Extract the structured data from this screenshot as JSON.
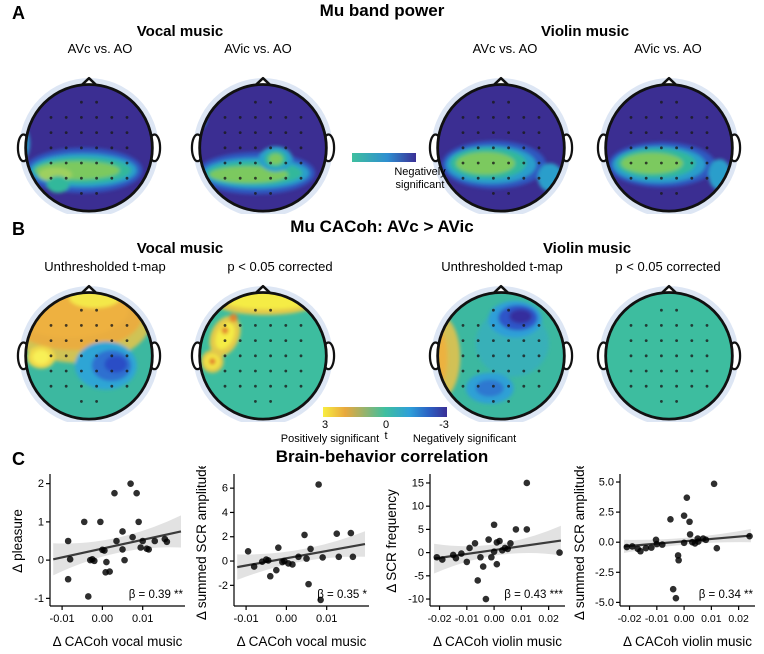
{
  "panels": {
    "a": {
      "label": "A",
      "title": "Mu band power",
      "groups": [
        {
          "title": "Vocal music",
          "conditions": [
            "AVc vs. AO",
            "AVic vs. AO"
          ]
        },
        {
          "title": "Violin music",
          "conditions": [
            "AVc vs. AO",
            "AVic vs. AO"
          ]
        }
      ],
      "colorbar": {
        "label_line1": "Negatively",
        "label_line2": "significant"
      }
    },
    "b": {
      "label": "B",
      "title": "Mu CACoh: AVc > AVic",
      "groups": [
        {
          "title": "Vocal music",
          "conditions": [
            "Unthresholded t-map",
            "p < 0.05 corrected"
          ]
        },
        {
          "title": "Violin music",
          "conditions": [
            "Unthresholded t-map",
            "p < 0.05 corrected"
          ]
        }
      ],
      "colorbar": {
        "ticks": [
          "3",
          "0",
          "-3"
        ],
        "left_label": "Positively significant",
        "mid_label": "t",
        "right_label": "Negatively significant"
      }
    },
    "c": {
      "label": "C",
      "title": "Brain-behavior correlation"
    }
  },
  "colors": {
    "colorbar_a_gradient": [
      "#3fbf9f",
      "#2e8fd0 55%",
      "#3a2f96"
    ],
    "colorbar_b_gradient": [
      "#f8ed41",
      "#e8a83e 18%",
      "#3fbf9f 50%",
      "#2e9fd9 70%",
      "#2b62c4 85%",
      "#3a2f96"
    ],
    "topo_dark_blue": "#3b2e92",
    "topo_teal": "#3cbd9f",
    "scatter_point": "#000000",
    "scatter_line": "#3b3b3b",
    "scatter_band": "#cfcfcf"
  },
  "topomaps": [
    {
      "panel": "A",
      "group": "Vocal music",
      "condition": "AVc vs. AO",
      "base": "#3b2e92",
      "blobs": [
        [
          50,
          67,
          42,
          16,
          0,
          "#2d59c0"
        ],
        [
          50,
          67,
          38,
          12,
          0,
          "#2a9ecb"
        ],
        [
          49,
          67,
          35,
          9.5,
          0,
          "#33b89b"
        ],
        [
          46,
          67,
          30,
          6.5,
          0,
          "#7cc95e"
        ],
        [
          30,
          70,
          12,
          5,
          0,
          "#9ed05e"
        ],
        [
          32,
          77,
          8,
          6,
          0,
          "#33b89b"
        ],
        [
          6,
          48,
          6,
          12,
          0,
          "#2a9ecb"
        ]
      ]
    },
    {
      "panel": "A",
      "group": "Vocal music",
      "condition": "AVic vs. AO",
      "base": "#3b2e92",
      "blobs": [
        [
          49,
          69,
          42,
          15,
          0,
          "#2d59c0"
        ],
        [
          49,
          69,
          38,
          11,
          0,
          "#2a9ecb"
        ],
        [
          48,
          69,
          34,
          8.5,
          0,
          "#33b89b"
        ],
        [
          44,
          70,
          28,
          6,
          0,
          "#7cc95e"
        ],
        [
          63,
          59,
          12,
          9,
          0,
          "#2a9ecb"
        ],
        [
          63,
          59,
          8,
          6,
          0,
          "#33b89b"
        ],
        [
          63,
          59,
          5,
          4,
          0,
          "#7cc95e"
        ],
        [
          8,
          30,
          6,
          8,
          0,
          "#2a9ecb"
        ]
      ]
    },
    {
      "panel": "A",
      "group": "Violin music",
      "condition": "AVc vs. AO",
      "base": "#3b2e92",
      "blobs": [
        [
          49,
          63,
          37,
          17,
          0,
          "#2d59c0"
        ],
        [
          47,
          63,
          32,
          13.5,
          0,
          "#2a9ecb"
        ],
        [
          45,
          62,
          27,
          11,
          0,
          "#33b89b"
        ],
        [
          43,
          62,
          21,
          8,
          0,
          "#7cc95e"
        ],
        [
          89,
          72,
          9,
          10,
          0,
          "#2a9ecb"
        ]
      ]
    },
    {
      "panel": "A",
      "group": "Violin music",
      "condition": "AVic vs. AO",
      "base": "#3b2e92",
      "blobs": [
        [
          49,
          63,
          38,
          16,
          0,
          "#2d59c0"
        ],
        [
          47,
          63,
          33,
          13,
          0,
          "#2a9ecb"
        ],
        [
          45,
          62,
          28,
          10.5,
          0,
          "#33b89b"
        ],
        [
          42,
          62,
          22,
          7.5,
          0,
          "#7cc95e"
        ],
        [
          90,
          70,
          8,
          11,
          0,
          "#2a9ecb"
        ]
      ]
    },
    {
      "panel": "B",
      "group": "Vocal music",
      "condition": "Unthresholded t-map",
      "base": "#3cb8a0",
      "blobs": [
        [
          46,
          26,
          52,
          30,
          0,
          "#cfc355"
        ],
        [
          44,
          22,
          48,
          25,
          0,
          "#e9ad40"
        ],
        [
          40,
          18,
          42,
          20,
          0,
          "#eeb13f"
        ],
        [
          58,
          10,
          18,
          7,
          0,
          "#f4e84a"
        ],
        [
          20,
          52,
          10,
          8,
          0,
          "#f0d84a"
        ],
        [
          20,
          52,
          6,
          5,
          0,
          "#f8f056"
        ],
        [
          66,
          58,
          22,
          17,
          0,
          "#2fa5d5"
        ],
        [
          70,
          58,
          14,
          11,
          0,
          "#2e6fd0"
        ],
        [
          73,
          57,
          8,
          6,
          0,
          "#2b4ec6"
        ]
      ]
    },
    {
      "panel": "B",
      "group": "Vocal music",
      "condition": "p < 0.05 corrected",
      "base": "#3dbd9f",
      "blobs": [
        [
          56,
          12,
          38,
          10,
          0,
          "#e3c94a"
        ],
        [
          58,
          11,
          33,
          7,
          0,
          "#f5ec45"
        ],
        [
          27,
          37,
          10,
          15,
          25,
          "#e3c94a"
        ],
        [
          27,
          37,
          6,
          10,
          25,
          "#f5ec45"
        ],
        [
          18,
          55,
          8,
          8,
          0,
          "#e3c94a"
        ],
        [
          18,
          55,
          5,
          5,
          0,
          "#f5ec45"
        ],
        [
          27,
          33,
          2.5,
          2.5,
          0,
          "#e2832f"
        ],
        [
          18,
          55,
          2.5,
          2.5,
          0,
          "#e2832f"
        ],
        [
          33,
          24,
          3,
          3,
          0,
          "#e2832f"
        ]
      ]
    },
    {
      "panel": "B",
      "group": "Violin music",
      "condition": "Unthresholded t-map",
      "base": "#3cb8a0",
      "blobs": [
        [
          62,
          42,
          26,
          24,
          0,
          "#38b0b8"
        ],
        [
          10,
          52,
          15,
          30,
          0,
          "#d2c155"
        ],
        [
          6,
          52,
          10,
          24,
          0,
          "#ecb23f"
        ],
        [
          3,
          50,
          5,
          12,
          0,
          "#f4e84a"
        ],
        [
          64,
          25,
          19,
          13,
          0,
          "#2f9fd8"
        ],
        [
          66,
          24,
          14,
          9,
          0,
          "#2e55c8"
        ],
        [
          68,
          23,
          8,
          5,
          0,
          "#342f9e"
        ],
        [
          46,
          74,
          17,
          11,
          0,
          "#2fa0d5"
        ],
        [
          46,
          74,
          10,
          6,
          0,
          "#2e78d0"
        ]
      ]
    },
    {
      "panel": "B",
      "group": "Violin music",
      "condition": "p < 0.05 corrected",
      "base": "#3dbd9f",
      "blobs": []
    }
  ],
  "chart_data": [
    {
      "type": "scatter",
      "name": "pleasure-vs-cacoh-vocal",
      "xlabel": "Δ CACoh vocal music",
      "ylabel": "Δ pleasure",
      "annotation": "β = 0.39 **",
      "xlim": [
        -0.013,
        0.0205
      ],
      "ylim": [
        -1.2,
        2.2
      ],
      "xticks": [
        -0.01,
        0,
        0.01
      ],
      "xtick_labels": [
        "-0.01",
        "0.00",
        "0.01"
      ],
      "yticks": [
        -1,
        0,
        1,
        2
      ],
      "ytick_labels": [
        "-1",
        "0",
        "1",
        "2"
      ],
      "points": [
        [
          -0.0085,
          0.5
        ],
        [
          -0.0085,
          -0.5
        ],
        [
          -0.008,
          0.02
        ],
        [
          -0.0045,
          1.0
        ],
        [
          -0.0035,
          -0.95
        ],
        [
          -0.003,
          0.0
        ],
        [
          -0.0025,
          0.02
        ],
        [
          -0.002,
          -0.02
        ],
        [
          -0.0005,
          1.0
        ],
        [
          0.0,
          0.27
        ],
        [
          0.0005,
          0.25
        ],
        [
          0.001,
          -0.05
        ],
        [
          0.0008,
          -0.32
        ],
        [
          0.0018,
          -0.3
        ],
        [
          0.003,
          1.75
        ],
        [
          0.0035,
          0.5
        ],
        [
          0.005,
          0.75
        ],
        [
          0.005,
          0.28
        ],
        [
          0.0055,
          0.0
        ],
        [
          0.007,
          2.0
        ],
        [
          0.0085,
          1.75
        ],
        [
          0.0075,
          0.6
        ],
        [
          0.009,
          1.0
        ],
        [
          0.0095,
          0.33
        ],
        [
          0.01,
          0.5
        ],
        [
          0.011,
          0.3
        ],
        [
          0.0115,
          0.28
        ],
        [
          0.013,
          0.5
        ],
        [
          0.0155,
          0.55
        ],
        [
          0.016,
          0.48
        ]
      ],
      "regression": {
        "x": [
          -0.0122,
          0.0195
        ],
        "y": [
          0.02,
          0.75
        ]
      },
      "ci": {
        "end": 0.42,
        "mid": 0.2
      }
    },
    {
      "type": "scatter",
      "name": "summed-scr-amplitude-vs-cacoh-vocal",
      "xlabel": "Δ CACoh vocal music",
      "ylabel": "Δ summed SCR amplitude",
      "annotation": "β = 0.35 *",
      "xlim": [
        -0.013,
        0.0205
      ],
      "ylim": [
        -3.7,
        7.0
      ],
      "xticks": [
        -0.01,
        0,
        0.01
      ],
      "xtick_labels": [
        "-0.01",
        "0.00",
        "0.01"
      ],
      "yticks": [
        -2,
        0,
        2,
        4,
        6
      ],
      "ytick_labels": [
        "-2",
        "0",
        "2",
        "4",
        "6"
      ],
      "points": [
        [
          -0.0095,
          0.8
        ],
        [
          -0.008,
          -0.45
        ],
        [
          -0.006,
          -0.05
        ],
        [
          -0.005,
          0.12
        ],
        [
          -0.0045,
          0.05
        ],
        [
          -0.004,
          -1.25
        ],
        [
          -0.0025,
          -0.75
        ],
        [
          -0.002,
          1.1
        ],
        [
          -0.001,
          -0.08
        ],
        [
          -0.0005,
          0.0
        ],
        [
          0.0005,
          -0.2
        ],
        [
          0.0015,
          -0.28
        ],
        [
          0.003,
          0.35
        ],
        [
          0.0045,
          2.15
        ],
        [
          0.005,
          0.2
        ],
        [
          0.0055,
          -1.9
        ],
        [
          0.006,
          1.0
        ],
        [
          0.008,
          6.3
        ],
        [
          0.0085,
          -3.2
        ],
        [
          0.009,
          0.3
        ],
        [
          0.0125,
          2.25
        ],
        [
          0.013,
          0.35
        ],
        [
          0.016,
          2.3
        ],
        [
          0.0165,
          0.35
        ]
      ],
      "regression": {
        "x": [
          -0.0122,
          0.0195
        ],
        "y": [
          -0.5,
          1.4
        ]
      },
      "ci": {
        "end": 1.05,
        "mid": 0.5
      }
    },
    {
      "type": "scatter",
      "name": "scr-frequency-vs-cacoh-violin",
      "xlabel": "Δ CACoh violin music",
      "ylabel": "Δ SCR frequency",
      "annotation": "β = 0.43 ***",
      "xlim": [
        -0.0235,
        0.026
      ],
      "ylim": [
        -11.5,
        16.5
      ],
      "xticks": [
        -0.02,
        -0.01,
        0,
        0.01,
        0.02
      ],
      "xtick_labels": [
        "-0.02",
        "-0.01",
        "0.00",
        "0.01",
        "0.02"
      ],
      "yticks": [
        -10,
        -5,
        0,
        5,
        10,
        15
      ],
      "ytick_labels": [
        "-10",
        "-5",
        "0",
        "5",
        "10",
        "15"
      ],
      "points": [
        [
          -0.021,
          -1.0
        ],
        [
          -0.019,
          -1.5
        ],
        [
          -0.015,
          -0.5
        ],
        [
          -0.014,
          -1.2
        ],
        [
          -0.012,
          -0.2
        ],
        [
          -0.01,
          -2.0
        ],
        [
          -0.009,
          1.0
        ],
        [
          -0.007,
          2.0
        ],
        [
          -0.006,
          -6.0
        ],
        [
          -0.005,
          -1.0
        ],
        [
          -0.004,
          -3.0
        ],
        [
          -0.003,
          -10.0
        ],
        [
          -0.002,
          2.8
        ],
        [
          -0.001,
          -1.0
        ],
        [
          0.0,
          6.0
        ],
        [
          0.0,
          0.2
        ],
        [
          0.001,
          2.2
        ],
        [
          0.001,
          -2.5
        ],
        [
          0.002,
          2.5
        ],
        [
          0.003,
          0.5
        ],
        [
          0.004,
          1.0
        ],
        [
          0.005,
          0.8
        ],
        [
          0.006,
          2.0
        ],
        [
          0.008,
          5.0
        ],
        [
          0.012,
          15.0
        ],
        [
          0.012,
          5.0
        ],
        [
          0.024,
          0.0
        ]
      ],
      "regression": {
        "x": [
          -0.022,
          0.0245
        ],
        "y": [
          -1.3,
          2.6
        ]
      },
      "ci": {
        "end": 3.2,
        "mid": 1.2
      }
    },
    {
      "type": "scatter",
      "name": "summed-scr-amplitude-vs-cacoh-violin",
      "xlabel": "Δ CACoh violin music",
      "ylabel": "Δ summed SCR amplitude",
      "annotation": "β = 0.34 **",
      "xlim": [
        -0.0235,
        0.026
      ],
      "ylim": [
        -5.3,
        5.5
      ],
      "xticks": [
        -0.02,
        -0.01,
        0,
        0.01,
        0.02
      ],
      "xtick_labels": [
        "-0.02",
        "-0.01",
        "0.00",
        "0.01",
        "0.02"
      ],
      "yticks": [
        -5,
        -2.5,
        0,
        2.5,
        5
      ],
      "ytick_labels": [
        "-5.0",
        "-2.5",
        "0.0",
        "2.5",
        "5.0"
      ],
      "points": [
        [
          -0.021,
          -0.4
        ],
        [
          -0.019,
          -0.35
        ],
        [
          -0.017,
          -0.55
        ],
        [
          -0.016,
          -0.75
        ],
        [
          -0.014,
          -0.5
        ],
        [
          -0.012,
          -0.45
        ],
        [
          -0.0103,
          0.2
        ],
        [
          -0.01,
          -0.15
        ],
        [
          -0.008,
          -0.2
        ],
        [
          -0.005,
          1.9
        ],
        [
          -0.004,
          -3.9
        ],
        [
          -0.003,
          -4.65
        ],
        [
          -0.0022,
          -1.1
        ],
        [
          -0.002,
          -1.5
        ],
        [
          0.0,
          2.2
        ],
        [
          0.0,
          -0.05
        ],
        [
          0.001,
          3.7
        ],
        [
          0.002,
          1.7
        ],
        [
          0.0022,
          0.65
        ],
        [
          0.003,
          0.0
        ],
        [
          0.004,
          -0.1
        ],
        [
          0.005,
          0.3
        ],
        [
          0.0052,
          0.05
        ],
        [
          0.007,
          0.3
        ],
        [
          0.008,
          0.2
        ],
        [
          0.011,
          4.85
        ],
        [
          0.012,
          -0.5
        ],
        [
          0.024,
          0.5
        ]
      ],
      "regression": {
        "x": [
          -0.022,
          0.0245
        ],
        "y": [
          -0.35,
          0.55
        ]
      },
      "ci": {
        "end": 0.55,
        "mid": 0.28
      }
    }
  ]
}
